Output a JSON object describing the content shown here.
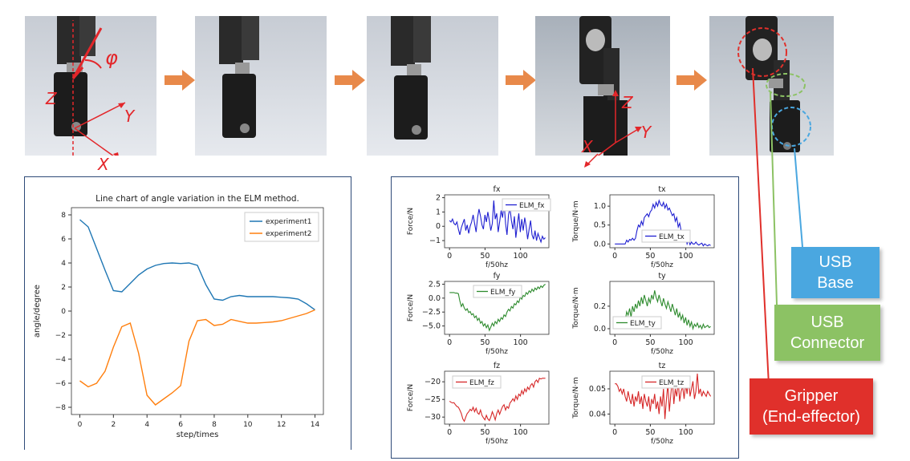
{
  "photo_labels": {
    "phi": "φ",
    "z1": "Z",
    "y1": "Y",
    "x1": "X",
    "z2": "Z",
    "y2": "Y",
    "x2": "X"
  },
  "legend_tags": {
    "usb_base": [
      "USB",
      "Base"
    ],
    "usb_connector": [
      "USB",
      "Connector"
    ],
    "gripper": [
      "Gripper",
      "(End-effector)"
    ]
  },
  "colors": {
    "arrow": "#e8894a",
    "annotation_red": "#e3262a",
    "usb_base": "#4aa7e0",
    "usb_connector": "#8cc264",
    "gripper": "#e0302b",
    "panel_border": "#2e4a78"
  },
  "chart_data": [
    {
      "type": "line",
      "title": "Line chart of angle variation in the ELM method.",
      "xlabel": "step/times",
      "ylabel": "angle/degree",
      "xlim": [
        -0.5,
        14.5
      ],
      "ylim": [
        -8.6,
        8.6
      ],
      "xticks": [
        "0",
        "2",
        "4",
        "6",
        "8",
        "10",
        "12",
        "14"
      ],
      "yticks": [
        "8",
        "6",
        "4",
        "2",
        "0",
        "−2",
        "−4",
        "−6",
        "−8"
      ],
      "legend": "top-right",
      "series": [
        {
          "name": "experiment1",
          "color": "#1f77b4",
          "x": [
            0,
            0.5,
            1,
            1.5,
            2,
            2.5,
            3,
            3.5,
            4,
            4.5,
            5,
            5.5,
            6,
            6.5,
            7,
            7.5,
            8,
            8.5,
            9,
            9.5,
            10,
            10.5,
            11,
            11.5,
            12,
            12.5,
            13,
            13.5,
            14
          ],
          "y": [
            7.6,
            7.0,
            5.2,
            3.4,
            1.7,
            1.6,
            2.3,
            3.0,
            3.5,
            3.8,
            3.95,
            4.0,
            3.95,
            4.0,
            3.8,
            2.2,
            1.0,
            0.9,
            1.2,
            1.3,
            1.2,
            1.2,
            1.2,
            1.2,
            1.15,
            1.1,
            1.0,
            0.6,
            0.1
          ]
        },
        {
          "name": "experiment2",
          "color": "#ff7f0e",
          "x": [
            0,
            0.5,
            1,
            1.5,
            2,
            2.5,
            3,
            3.5,
            4,
            4.5,
            5,
            5.5,
            6,
            6.5,
            7,
            7.5,
            8,
            8.5,
            9,
            9.5,
            10,
            10.5,
            11,
            11.5,
            12,
            12.5,
            13,
            13.5,
            14
          ],
          "y": [
            -5.8,
            -6.3,
            -6.0,
            -5.0,
            -3.0,
            -1.3,
            -1.0,
            -3.5,
            -7.0,
            -7.8,
            -7.3,
            -6.8,
            -6.2,
            -2.5,
            -0.8,
            -0.7,
            -1.2,
            -1.1,
            -0.7,
            -0.85,
            -1.0,
            -1.0,
            -0.95,
            -0.9,
            -0.8,
            -0.6,
            -0.4,
            -0.2,
            0.1
          ]
        }
      ]
    },
    {
      "type": "line",
      "title": "fx",
      "xlabel": "f/50hz",
      "ylabel": "Force/N",
      "xlim": [
        -7,
        140
      ],
      "ylim": [
        -1.5,
        2.2
      ],
      "xticks": [
        0,
        50,
        100
      ],
      "yticks": [
        2,
        1,
        0,
        -1
      ],
      "yticklabels": [
        "2",
        "1",
        "0",
        "−1"
      ],
      "series": [
        {
          "name": "ELM_fx",
          "color": "#1f1fd1",
          "y": [
            0.4,
            0.3,
            0.5,
            0.2,
            0.1,
            0.3,
            -0.2,
            -0.6,
            -0.1,
            0.2,
            0.5,
            -0.3,
            0.1,
            -0.5,
            0.0,
            0.3,
            0.8,
            0.2,
            -0.4,
            0.6,
            1.2,
            0.7,
            0.1,
            -0.2,
            0.8,
            0.3,
            1.0,
            0.4,
            -0.3,
            0.2,
            1.8,
            0.5,
            0.9,
            -0.4,
            0.3,
            1.1,
            0.6,
            1.7,
            0.2,
            -0.6,
            0.8,
            1.3,
            0.4,
            -0.2,
            0.7,
            -0.8,
            0.1,
            0.9,
            -0.4,
            0.5,
            -0.3,
            0.6,
            0.0,
            -0.9,
            -0.2,
            0.4,
            -0.6,
            -0.9,
            -0.3,
            -1.0,
            -0.5,
            -0.8,
            -1.1,
            -0.7,
            -0.9,
            -0.8
          ]
        }
      ]
    },
    {
      "type": "line",
      "title": "tx",
      "xlabel": "f/50hz",
      "ylabel": "Torque/N·m",
      "xlim": [
        -7,
        140
      ],
      "ylim": [
        -0.1,
        1.3
      ],
      "xticks": [
        0,
        50,
        100
      ],
      "yticks": [
        1.0,
        0.5,
        0.0
      ],
      "yticklabels": [
        "1.0",
        "0.5",
        "0.0"
      ],
      "series": [
        {
          "name": "ELM_tx",
          "color": "#1f1fd1",
          "y": [
            0.0,
            0.0,
            0.0,
            0.0,
            0.0,
            0.0,
            0.0,
            0.0,
            0.1,
            0.05,
            0.12,
            0.1,
            0.15,
            0.1,
            0.15,
            0.35,
            0.5,
            0.45,
            0.6,
            0.5,
            0.7,
            0.75,
            0.8,
            0.72,
            0.85,
            0.9,
            1.05,
            0.95,
            1.1,
            1.0,
            1.15,
            1.05,
            1.0,
            1.1,
            0.95,
            1.05,
            0.9,
            0.95,
            0.85,
            0.75,
            0.8,
            0.6,
            0.7,
            0.45,
            0.55,
            0.35,
            0.3,
            0.15,
            0.2,
            0.0,
            0.1,
            -0.02,
            0.05,
            0.0,
            0.0,
            0.05,
            0.0,
            -0.03,
            0.0,
            0.02,
            -0.05,
            0.0,
            -0.03,
            -0.05,
            -0.02,
            -0.04
          ]
        }
      ]
    },
    {
      "type": "line",
      "title": "fy",
      "xlabel": "f/50hz",
      "ylabel": "Force/N",
      "xlim": [
        -7,
        140
      ],
      "ylim": [
        -6.5,
        3.0
      ],
      "xticks": [
        0,
        50,
        100
      ],
      "yticks": [
        2.5,
        0.0,
        -2.5,
        -5.0
      ],
      "yticklabels": [
        "2.5",
        "0.0",
        "−2.5",
        "−5.0"
      ],
      "series": [
        {
          "name": "ELM_fy",
          "color": "#2e8b2e",
          "y": [
            1.0,
            1.0,
            1.0,
            1.0,
            0.9,
            0.9,
            0.8,
            -0.5,
            -1.5,
            -1.0,
            -1.8,
            -2.2,
            -1.9,
            -2.6,
            -2.4,
            -3.0,
            -2.8,
            -3.5,
            -3.2,
            -4.0,
            -3.6,
            -4.5,
            -4.2,
            -5.0,
            -4.6,
            -5.3,
            -4.8,
            -5.8,
            -5.2,
            -4.5,
            -5.0,
            -4.2,
            -4.6,
            -3.8,
            -4.2,
            -3.5,
            -3.8,
            -3.0,
            -3.3,
            -2.5,
            -2.0,
            -2.3,
            -1.5,
            -1.8,
            -1.0,
            -1.2,
            -0.5,
            -0.8,
            0.2,
            -0.2,
            0.5,
            0.3,
            1.0,
            0.7,
            1.3,
            1.0,
            1.6,
            1.2,
            1.8,
            1.5,
            2.0,
            1.7,
            2.2,
            1.9,
            2.3,
            2.5
          ]
        }
      ]
    },
    {
      "type": "line",
      "title": "ty",
      "xlabel": "f/50hz",
      "ylabel": "Torque/N·m",
      "xlim": [
        -7,
        140
      ],
      "ylim": [
        -0.05,
        0.42
      ],
      "xticks": [
        0,
        50,
        100
      ],
      "yticks": [
        0.2,
        0.0
      ],
      "yticklabels": [
        "0.2",
        "0.0"
      ],
      "series": [
        {
          "name": "ELM_ty",
          "color": "#2e8b2e",
          "y": [
            0.03,
            0.05,
            0.02,
            0.08,
            0.05,
            0.1,
            0.08,
            0.06,
            0.15,
            0.12,
            0.18,
            0.1,
            0.2,
            0.15,
            0.22,
            0.18,
            0.25,
            0.2,
            0.28,
            0.22,
            0.3,
            0.25,
            0.2,
            0.27,
            0.23,
            0.3,
            0.26,
            0.34,
            0.28,
            0.24,
            0.3,
            0.25,
            0.2,
            0.27,
            0.22,
            0.18,
            0.24,
            0.2,
            0.15,
            0.22,
            0.17,
            0.12,
            0.18,
            0.1,
            0.14,
            0.08,
            0.12,
            0.05,
            0.1,
            0.03,
            0.08,
            0.02,
            0.06,
            0.0,
            0.04,
            0.02,
            0.05,
            0.01,
            0.03,
            0.0,
            0.04,
            0.01,
            0.02,
            0.03,
            0.01,
            0.02
          ]
        }
      ]
    },
    {
      "type": "line",
      "title": "fz",
      "xlabel": "f/50hz",
      "ylabel": "Force/N",
      "xlim": [
        -7,
        140
      ],
      "ylim": [
        -32,
        -17
      ],
      "xticks": [
        0,
        50,
        100
      ],
      "yticks": [
        -20,
        -25,
        -30
      ],
      "yticklabels": [
        "−20",
        "−25",
        "−30"
      ],
      "series": [
        {
          "name": "ELM_fz",
          "color": "#d62728",
          "y": [
            -25.5,
            -25.8,
            -26.0,
            -25.9,
            -26.5,
            -27.0,
            -27.2,
            -28.0,
            -29.0,
            -30.5,
            -31.2,
            -30.0,
            -29.0,
            -28.5,
            -27.8,
            -28.2,
            -27.2,
            -28.5,
            -27.5,
            -28.8,
            -29.2,
            -28.0,
            -29.5,
            -30.2,
            -30.8,
            -29.5,
            -30.5,
            -31.0,
            -30.0,
            -28.5,
            -29.5,
            -30.8,
            -29.0,
            -28.0,
            -29.2,
            -28.0,
            -27.0,
            -26.5,
            -28.0,
            -27.0,
            -27.5,
            -26.0,
            -25.5,
            -24.8,
            -25.5,
            -24.0,
            -25.0,
            -23.5,
            -24.0,
            -22.5,
            -23.5,
            -22.0,
            -22.8,
            -21.5,
            -22.2,
            -21.0,
            -20.5,
            -21.5,
            -20.0,
            -19.5,
            -20.2,
            -19.0,
            -19.2,
            -19.0,
            -19.0,
            -19.0
          ]
        }
      ]
    },
    {
      "type": "line",
      "title": "tz",
      "xlabel": "f/50hz",
      "ylabel": "Torque/N·m",
      "xlim": [
        -7,
        140
      ],
      "ylim": [
        0.036,
        0.057
      ],
      "xticks": [
        0,
        50,
        100
      ],
      "yticks": [
        0.05,
        0.04
      ],
      "yticklabels": [
        "0.05",
        "0.04"
      ],
      "series": [
        {
          "name": "ELM_tz",
          "color": "#d62728",
          "y": [
            0.052,
            0.052,
            0.051,
            0.049,
            0.05,
            0.048,
            0.05,
            0.047,
            0.045,
            0.049,
            0.046,
            0.044,
            0.048,
            0.043,
            0.047,
            0.045,
            0.049,
            0.044,
            0.047,
            0.042,
            0.048,
            0.045,
            0.043,
            0.047,
            0.041,
            0.046,
            0.044,
            0.048,
            0.042,
            0.045,
            0.04,
            0.047,
            0.043,
            0.05,
            0.038,
            0.046,
            0.052,
            0.041,
            0.048,
            0.054,
            0.044,
            0.05,
            0.047,
            0.053,
            0.045,
            0.049,
            0.051,
            0.046,
            0.052,
            0.048,
            0.055,
            0.047,
            0.05,
            0.053,
            0.046,
            0.049,
            0.056,
            0.048,
            0.05,
            0.047,
            0.049,
            0.048,
            0.047,
            0.049,
            0.048,
            0.047
          ]
        }
      ]
    }
  ]
}
